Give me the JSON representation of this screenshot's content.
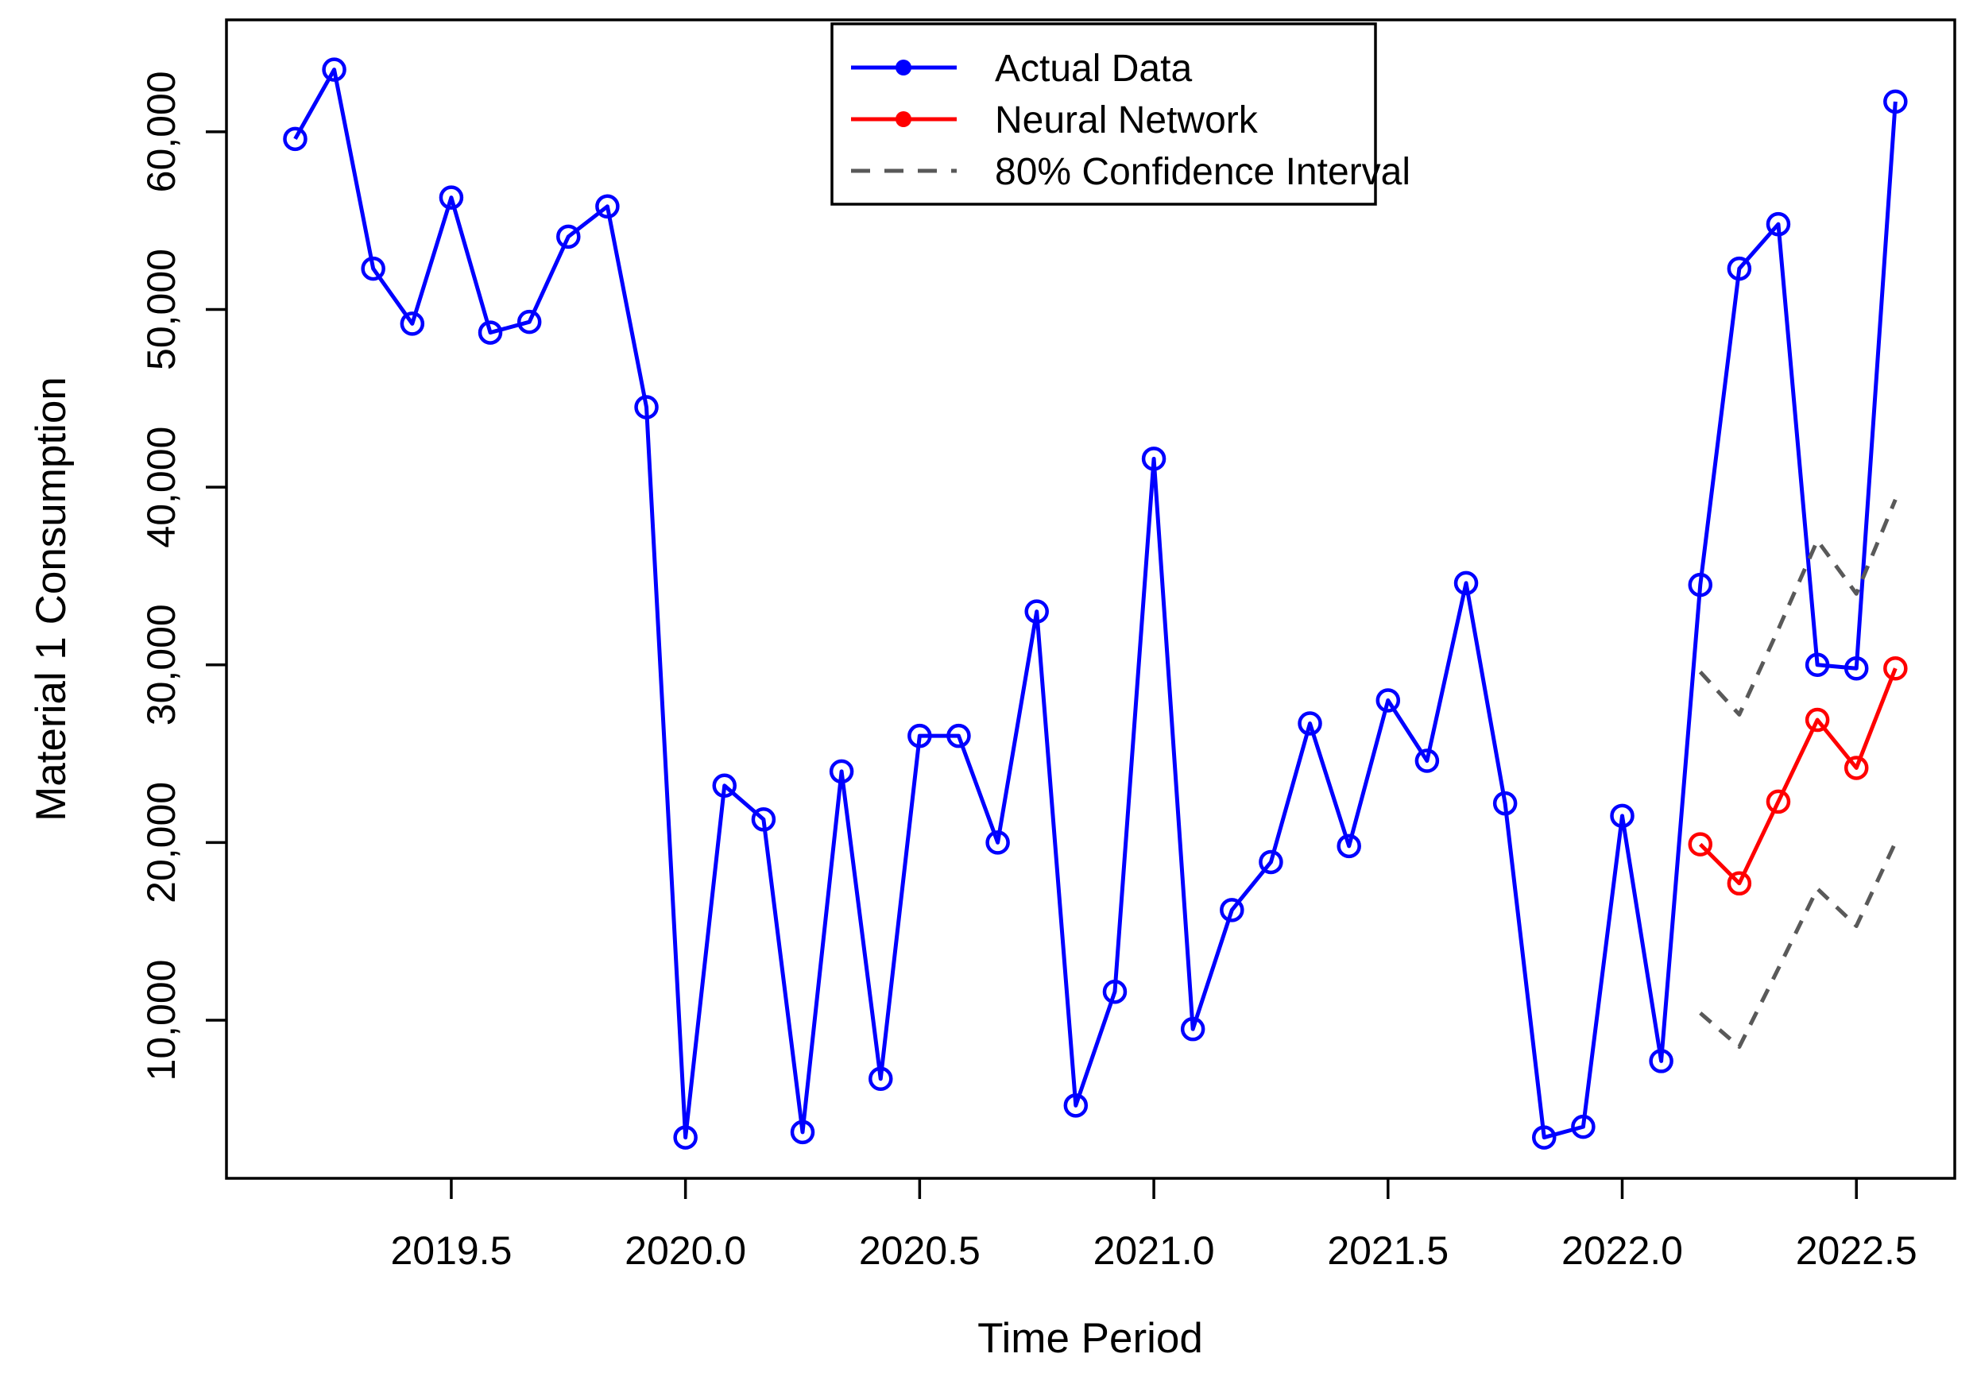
{
  "chart_data": {
    "type": "line",
    "title": "",
    "xlabel": "Time Period",
    "ylabel": "Material 1 Consumption",
    "x_range": [
      2019.02,
      2022.71
    ],
    "y_range": [
      1100,
      66300
    ],
    "grid": false,
    "legend_position": "top-center-inside",
    "x_ticks": [
      {
        "value": 2019.5,
        "label": "2019.5"
      },
      {
        "value": 2020.0,
        "label": "2020.0"
      },
      {
        "value": 2020.5,
        "label": "2020.5"
      },
      {
        "value": 2021.0,
        "label": "2021.0"
      },
      {
        "value": 2021.5,
        "label": "2021.5"
      },
      {
        "value": 2022.0,
        "label": "2022.0"
      },
      {
        "value": 2022.5,
        "label": "2022.5"
      }
    ],
    "y_ticks": [
      {
        "value": 10000,
        "label": "10,000"
      },
      {
        "value": 20000,
        "label": "20,000"
      },
      {
        "value": 30000,
        "label": "30,000"
      },
      {
        "value": 40000,
        "label": "40,000"
      },
      {
        "value": 50000,
        "label": "50,000"
      },
      {
        "value": 60000,
        "label": "60,000"
      }
    ],
    "series": [
      {
        "name": "Actual Data",
        "color": "#0000FF",
        "line": "solid",
        "marker": "open-circle",
        "x": [
          2019.1667,
          2019.25,
          2019.3333,
          2019.4167,
          2019.5,
          2019.5833,
          2019.6667,
          2019.75,
          2019.8333,
          2019.9167,
          2020.0,
          2020.0833,
          2020.1667,
          2020.25,
          2020.3333,
          2020.4167,
          2020.5,
          2020.5833,
          2020.6667,
          2020.75,
          2020.8333,
          2020.9167,
          2021.0,
          2021.0833,
          2021.1667,
          2021.25,
          2021.3333,
          2021.4167,
          2021.5,
          2021.5833,
          2021.6667,
          2021.75,
          2021.8333,
          2021.9167,
          2022.0,
          2022.0833,
          2022.1667,
          2022.25,
          2022.3333,
          2022.4167,
          2022.5,
          2022.5833
        ],
        "y": [
          59600,
          63500,
          52300,
          49200,
          56300,
          48700,
          49300,
          54100,
          55800,
          44500,
          3400,
          23200,
          21300,
          3700,
          24000,
          6700,
          26000,
          26000,
          20000,
          33000,
          5200,
          11600,
          41600,
          9500,
          16200,
          18900,
          26700,
          19800,
          28000,
          24600,
          34600,
          22200,
          3400,
          4000,
          21500,
          7700,
          34500,
          52300,
          54800,
          30000,
          29800,
          61700
        ]
      },
      {
        "name": "Neural Network",
        "color": "#FF0000",
        "line": "solid",
        "marker": "open-circle",
        "x": [
          2022.1667,
          2022.25,
          2022.3333,
          2022.4167,
          2022.5,
          2022.5833
        ],
        "y": [
          19900,
          17700,
          22300,
          26900,
          24200,
          29800
        ]
      },
      {
        "name": "80% Confidence Interval (upper)",
        "color": "#595959",
        "line": "dashed",
        "marker": "none",
        "x": [
          2022.1667,
          2022.25,
          2022.3333,
          2022.4167,
          2022.5,
          2022.5833
        ],
        "y": [
          29600,
          27200,
          32000,
          37000,
          34000,
          39300
        ]
      },
      {
        "name": "80% Confidence Interval (lower)",
        "color": "#595959",
        "line": "dashed",
        "marker": "none",
        "x": [
          2022.1667,
          2022.25,
          2022.3333,
          2022.4167,
          2022.5,
          2022.5833
        ],
        "y": [
          10400,
          8500,
          12900,
          17400,
          15300,
          20000
        ]
      }
    ]
  },
  "legend": {
    "items": [
      {
        "label": "Actual Data",
        "color": "#0000FF",
        "glyph": "line-with-dot"
      },
      {
        "label": "Neural Network",
        "color": "#FF0000",
        "glyph": "line-with-dot"
      },
      {
        "label": "80% Confidence Interval",
        "color": "#595959",
        "glyph": "dashed-line"
      }
    ]
  }
}
